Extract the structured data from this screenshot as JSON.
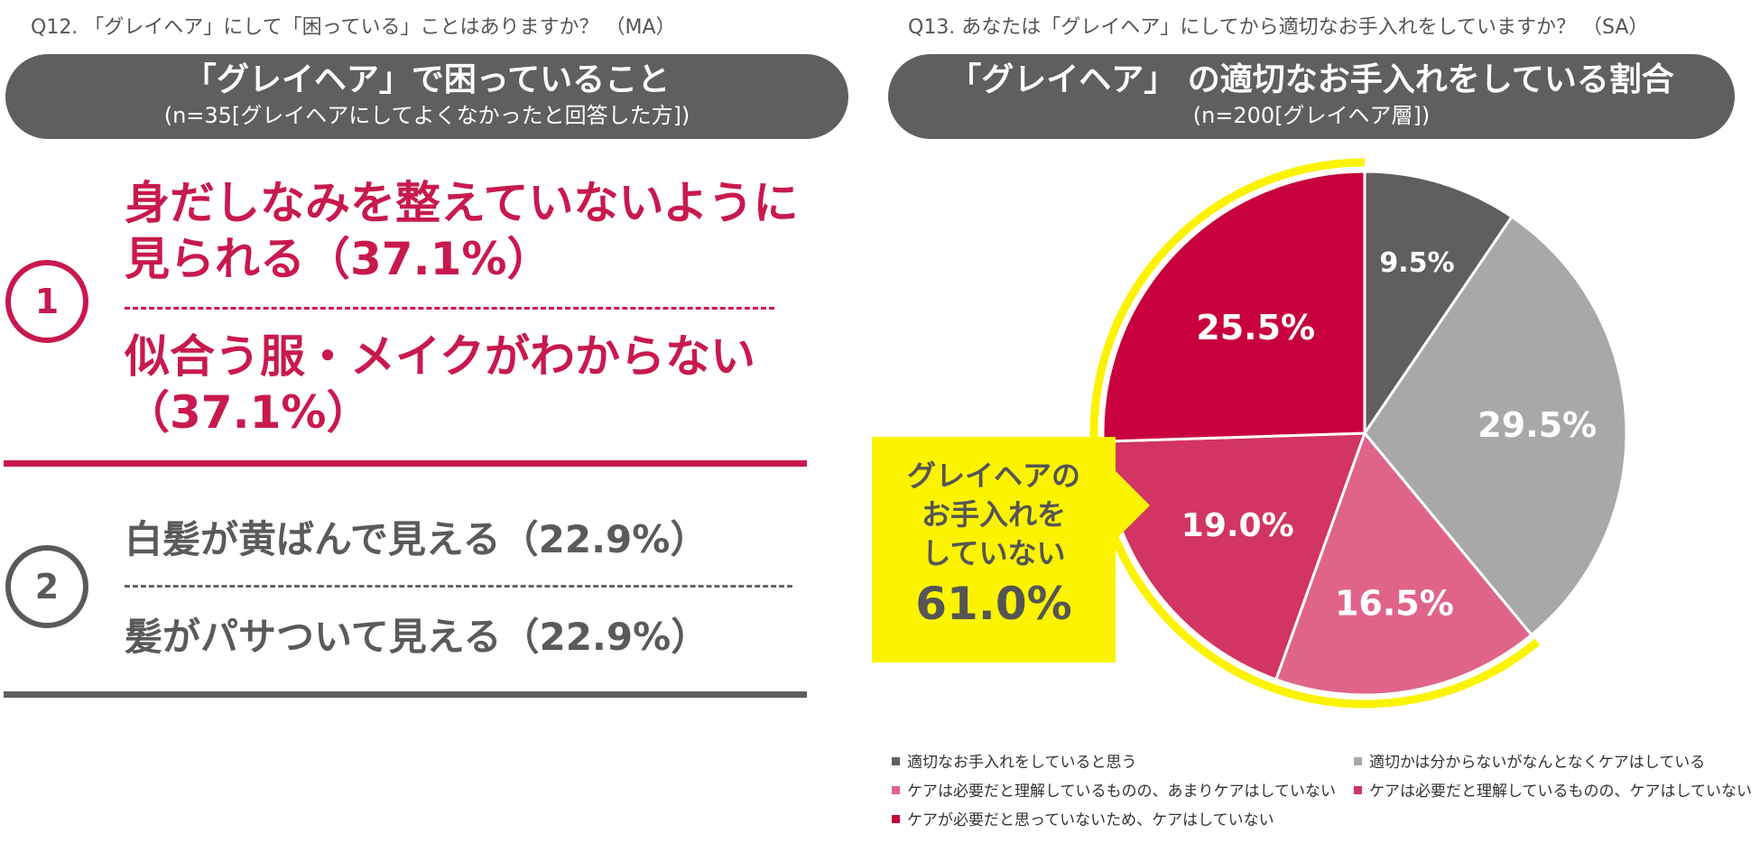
{
  "left_panel": {
    "question": "Q12. 「グレイヘア」にして「困っている」ことはありますか？ （MA）",
    "title": "「グレイヘア」で困っていること",
    "subtitle": "(n=35[グレイヘアにしてよくなかったと回答した方])",
    "ranks": [
      {
        "number": "1",
        "items": [
          "身だしなみを整えていないように見られる（37.1%）",
          "似合う服・メイクがわからない（37.1%）"
        ],
        "lines": [
          "身だしなみを整えていないように",
          "見られる（37.1%）",
          "似合う服・メイクがわからない",
          "（37.1%）"
        ],
        "color": "#c8194d"
      },
      {
        "number": "2",
        "items": [
          "白髪が黄ばんで見える（22.9%）",
          "髪がパサついて見える（22.9%）"
        ],
        "lines": [
          "白髪が黄ばんで見える（22.9%）",
          "髪がパサついて見える（22.9%）"
        ],
        "color": "#5a5a5a"
      }
    ]
  },
  "right_panel": {
    "question": "Q13. あなたは「グレイヘア」にしてから適切なお手入れをしていますか？ （SA）",
    "title": "「グレイヘア」 の適切なお手入れをしている割合",
    "subtitle": "(n=200[グレイヘア層])",
    "callout": {
      "lines": [
        "グレイヘアの",
        "お手入れを",
        "していない"
      ],
      "value": "61.0%",
      "highlight_color": "#fbf300"
    }
  },
  "chart_data": {
    "type": "pie",
    "title": "「グレイヘア」 の適切なお手入れをしている割合",
    "start_angle_deg": 0,
    "direction": "clockwise",
    "highlighted_group": {
      "label": "グレイヘアのお手入れをしていない",
      "value": 61.0,
      "members": [
        2,
        3,
        4
      ]
    },
    "slices": [
      {
        "label": "適切なお手入れをしていると思う",
        "value": 9.5,
        "display": "9.5%",
        "color": "#5f5f5f"
      },
      {
        "label": "適切かは分からないがなんとなくケアはしている",
        "value": 29.5,
        "display": "29.5%",
        "color": "#a8a8a8"
      },
      {
        "label": "ケアは必要だと理解しているものの、あまりケアはしていない",
        "value": 16.5,
        "display": "16.5%",
        "color": "#e0648a"
      },
      {
        "label": "ケアは必要だと理解しているものの、ケアはしていない",
        "value": 19.0,
        "display": "19.0%",
        "color": "#d23463"
      },
      {
        "label": "ケアが必要だと思っていないため、ケアはしていない",
        "value": 25.5,
        "display": "25.5%",
        "color": "#c8003d"
      }
    ]
  }
}
